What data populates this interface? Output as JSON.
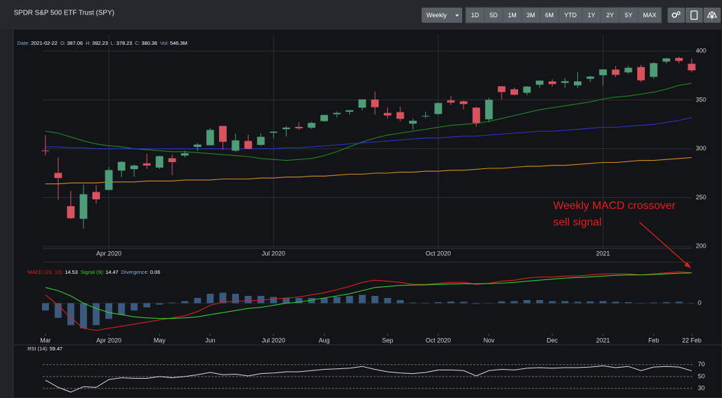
{
  "toolbar": {
    "interval": "Weekly",
    "ranges": [
      "1D",
      "5D",
      "1M",
      "3M",
      "6M",
      "YTD",
      "1Y",
      "2Y",
      "5Y",
      "MAX"
    ]
  },
  "chart_data": {
    "type": "candlestick",
    "title": "SPDR S&P 500 ETF Trust (SPY)",
    "x": [
      "2020-03-02",
      "2020-03-09",
      "2020-03-16",
      "2020-03-23",
      "2020-03-30",
      "2020-04-06",
      "2020-04-13",
      "2020-04-20",
      "2020-04-27",
      "2020-05-04",
      "2020-05-11",
      "2020-05-18",
      "2020-05-25",
      "2020-06-01",
      "2020-06-08",
      "2020-06-15",
      "2020-06-22",
      "2020-06-29",
      "2020-07-06",
      "2020-07-13",
      "2020-07-20",
      "2020-07-27",
      "2020-08-03",
      "2020-08-10",
      "2020-08-17",
      "2020-08-24",
      "2020-08-31",
      "2020-09-07",
      "2020-09-14",
      "2020-09-21",
      "2020-09-28",
      "2020-10-05",
      "2020-10-12",
      "2020-10-19",
      "2020-10-26",
      "2020-11-02",
      "2020-11-09",
      "2020-11-16",
      "2020-11-23",
      "2020-11-30",
      "2020-12-07",
      "2020-12-14",
      "2020-12-21",
      "2020-12-28",
      "2021-01-04",
      "2021-01-11",
      "2021-01-18",
      "2021-01-25",
      "2021-02-01",
      "2021-02-08",
      "2021-02-15",
      "2021-02-22"
    ],
    "ohlc": {
      "open": [
        298.2,
        275.3,
        241.2,
        228.2,
        255.7,
        257.8,
        277.6,
        279.1,
        285.1,
        280.7,
        290.3,
        293.0,
        301.9,
        303.6,
        323.35,
        298.0,
        307.99,
        303.99,
        316.4,
        320.1,
        322.4,
        321.6,
        328.3,
        335.4,
        337.9,
        342.1,
        350.4,
        336.7,
        337.5,
        325.7,
        333.1,
        335.6,
        349.6,
        348.65,
        342.1,
        330.2,
        363.97,
        360.9,
        357.3,
        365.6,
        369.0,
        367.5,
        364.97,
        371.7,
        375.3,
        381.1,
        378.3,
        383.7,
        373.7,
        389.3,
        393.0,
        387.06
      ],
      "high": [
        313.8,
        290.9,
        256.9,
        263.3,
        262.5,
        281.2,
        287.3,
        283.9,
        294.9,
        292.9,
        294.0,
        297.9,
        306.0,
        321.3,
        323.41,
        315.6,
        314.5,
        315.7,
        317.9,
        323.4,
        327.2,
        327.7,
        334.9,
        338.3,
        339.7,
        350.7,
        358.75,
        342.6,
        343.1,
        331.2,
        337.9,
        347.4,
        354.0,
        349.3,
        342.98,
        352.2,
        364.4,
        362.7,
        364.2,
        369.9,
        371.1,
        372.5,
        378.5,
        374.7,
        381.5,
        385.0,
        384.95,
        385.85,
        388.5,
        392.9,
        394.2,
        392.23
      ],
      "low": [
        293.1,
        247.7,
        228.0,
        218.3,
        243.9,
        257.8,
        270.9,
        271.4,
        279.3,
        279.4,
        272.99,
        291.0,
        297.8,
        303.2,
        299.0,
        296.7,
        299.4,
        303.0,
        310.7,
        312.6,
        319.2,
        320.3,
        327.7,
        332.0,
        335.2,
        339.5,
        334.9,
        331.0,
        327.97,
        319.8,
        331.2,
        334.7,
        345.0,
        340.4,
        322.6,
        327.2,
        350.5,
        354.9,
        354.9,
        362.5,
        363.7,
        362.4,
        362.03,
        368.2,
        364.8,
        373.4,
        376.7,
        368.3,
        372.0,
        387.5,
        387.7,
        378.23
      ],
      "close": [
        297.5,
        270.0,
        228.8,
        253.4,
        248.2,
        278.2,
        286.6,
        282.8,
        282.8,
        292.4,
        286.3,
        295.4,
        304.3,
        319.3,
        307.1,
        308.6,
        300.05,
        312.2,
        317.6,
        321.7,
        320.9,
        326.5,
        334.6,
        336.8,
        339.5,
        350.6,
        342.6,
        334.1,
        330.65,
        328.7,
        333.8,
        346.85,
        347.3,
        345.8,
        326.5,
        350.2,
        358.1,
        355.3,
        363.7,
        369.85,
        366.3,
        369.2,
        369.0,
        373.9,
        381.3,
        375.7,
        382.9,
        370.1,
        387.7,
        392.6,
        390.0,
        380.36
      ]
    },
    "up_color": "#4e9c78",
    "down_color": "#d9535f",
    "series": [
      {
        "color": "#1f8a1f",
        "values": [
          318,
          316,
          312,
          308,
          305,
          303,
          302,
          300,
          299,
          298,
          297,
          297,
          296,
          295,
          294,
          293,
          292,
          290,
          289,
          288,
          289,
          290,
          293,
          297,
          302,
          307,
          311,
          314,
          316,
          318,
          320,
          322,
          324,
          325,
          326,
          328,
          331,
          334,
          337,
          340,
          342,
          344,
          346,
          348,
          351,
          353,
          354,
          356,
          358,
          361,
          365,
          367
        ]
      },
      {
        "color": "#2a35c8",
        "values": [
          302,
          302,
          301,
          301,
          300,
          300,
          300,
          300,
          300,
          300,
          300,
          300,
          300,
          300,
          300,
          300,
          300,
          300,
          300,
          301,
          301,
          302,
          303,
          304,
          305,
          306,
          307,
          308,
          309,
          310,
          311,
          311,
          312,
          313,
          313,
          314,
          315,
          316,
          317,
          318,
          318,
          319,
          320,
          321,
          322,
          322,
          323,
          324,
          325,
          327,
          329,
          332
        ]
      },
      {
        "color": "#d4901f",
        "values": [
          264,
          264,
          265,
          265,
          265,
          266,
          266,
          266,
          267,
          267,
          267,
          268,
          268,
          268,
          269,
          269,
          269,
          270,
          270,
          271,
          271,
          272,
          272,
          273,
          274,
          274,
          275,
          275,
          276,
          276,
          277,
          277,
          278,
          278,
          279,
          280,
          280,
          281,
          282,
          282,
          283,
          283,
          284,
          285,
          286,
          286,
          287,
          288,
          288,
          289,
          290,
          291
        ]
      }
    ],
    "info": {
      "labels": [
        "Date:",
        "O:",
        "H:",
        "L:",
        "C:",
        "Vol:"
      ],
      "volume": "546.3M"
    },
    "ylim": [
      198,
      410
    ],
    "yticks": [
      200,
      250,
      300,
      350,
      400
    ],
    "grid": true,
    "xticks": [
      {
        "value": "2020-04-06",
        "label": "Apr 2020"
      },
      {
        "value": "2020-07-06",
        "label": "Jul 2020"
      },
      {
        "value": "2020-10-05",
        "label": "Oct 2020"
      },
      {
        "value": "2021-01-04",
        "label": "2021"
      }
    ],
    "annotation": {
      "lines": [
        "Weekly MACD crossover",
        "sell signal"
      ],
      "color": "#e0201b"
    },
    "macd": {
      "type": "macd",
      "series": [
        {
          "name": "MACD (26, 12):",
          "color": "#e02020",
          "values": [
            4,
            -1,
            -7,
            -12,
            -13,
            -12,
            -11,
            -10,
            -9,
            -8,
            -7,
            -6,
            -4,
            -1,
            0.5,
            1,
            1,
            1.5,
            2,
            2.5,
            3,
            4,
            5,
            6.5,
            8,
            10,
            11,
            10.5,
            10,
            9,
            9,
            9.5,
            10,
            10,
            9,
            9.5,
            10.5,
            11,
            12,
            12.5,
            12.5,
            13,
            13,
            13.5,
            14,
            14,
            14,
            13.5,
            14,
            14.5,
            15,
            14.53
          ]
        },
        {
          "name": "Signal (9):",
          "color": "#2fd02f",
          "values": [
            7.5,
            6,
            3.5,
            0,
            -2.5,
            -4.5,
            -5.5,
            -6.5,
            -7,
            -7.3,
            -7.3,
            -7,
            -6.5,
            -5.5,
            -4.5,
            -3.5,
            -2.5,
            -2,
            -1,
            0,
            0.5,
            1.5,
            2.5,
            3.5,
            4.5,
            6,
            7.5,
            8,
            8.5,
            8.7,
            8.8,
            9,
            9.2,
            9.3,
            9.3,
            9.4,
            9.6,
            10,
            10.5,
            11,
            11.5,
            12,
            12.3,
            12.6,
            13,
            13.3,
            13.5,
            13.5,
            13.7,
            14,
            14.3,
            14.47
          ]
        },
        {
          "name": "Divergence:",
          "type": "bar",
          "color": "#3b5a7d",
          "values": [
            -3.5,
            -7,
            -10.5,
            -12,
            -10.5,
            -7.5,
            -5.5,
            -3.5,
            -2,
            -0.7,
            0.3,
            1,
            2.5,
            4.5,
            5,
            4.5,
            3.5,
            3.5,
            3,
            2.5,
            2.5,
            2.5,
            2.5,
            3,
            3.5,
            4,
            3.5,
            2.5,
            1.5,
            0.3,
            0.2,
            0.5,
            0.8,
            0.7,
            -0.3,
            0.1,
            0.9,
            1,
            1.5,
            1.5,
            1,
            1,
            0.7,
            0.9,
            1,
            0.7,
            0.5,
            0,
            0.3,
            0.5,
            0.7,
            0.06
          ]
        }
      ],
      "ylim": [
        -14,
        18
      ],
      "yticks": [
        0
      ],
      "xticks": [
        {
          "value": "2020-03-02",
          "label": "Mar"
        },
        {
          "value": "2020-04-06",
          "label": "Apr 2020"
        },
        {
          "value": "2020-05-04",
          "label": "May"
        },
        {
          "value": "2020-06-01",
          "label": "Jun"
        },
        {
          "value": "2020-07-06",
          "label": "Jul 2020"
        },
        {
          "value": "2020-08-03",
          "label": "Aug"
        },
        {
          "value": "2020-09-07",
          "label": "Sep"
        },
        {
          "value": "2020-10-05",
          "label": "Oct 2020"
        },
        {
          "value": "2020-11-02",
          "label": "Nov"
        },
        {
          "value": "2020-12-07",
          "label": "Dec"
        },
        {
          "value": "2021-01-04",
          "label": "2021"
        },
        {
          "value": "2021-02-01",
          "label": "Feb"
        },
        {
          "value": "2021-02-22",
          "label": "22 Feb"
        }
      ]
    },
    "rsi": {
      "type": "line",
      "series": [
        {
          "name": "RSI (14):",
          "color": "#e6d3ee",
          "values": [
            44,
            32,
            24,
            33,
            32,
            45,
            48,
            47,
            47,
            50,
            48,
            50,
            53,
            57,
            53,
            54,
            51,
            55,
            56,
            58,
            58,
            60,
            62,
            63,
            64,
            67,
            62,
            58,
            56,
            55,
            57,
            61,
            61,
            60,
            51,
            60,
            62,
            61,
            64,
            65,
            64,
            65,
            65,
            66,
            68,
            65,
            67,
            60,
            66,
            67,
            66,
            59.47
          ]
        }
      ],
      "ylim": [
        14,
        80
      ],
      "yticks": [
        30,
        50,
        70
      ]
    }
  }
}
